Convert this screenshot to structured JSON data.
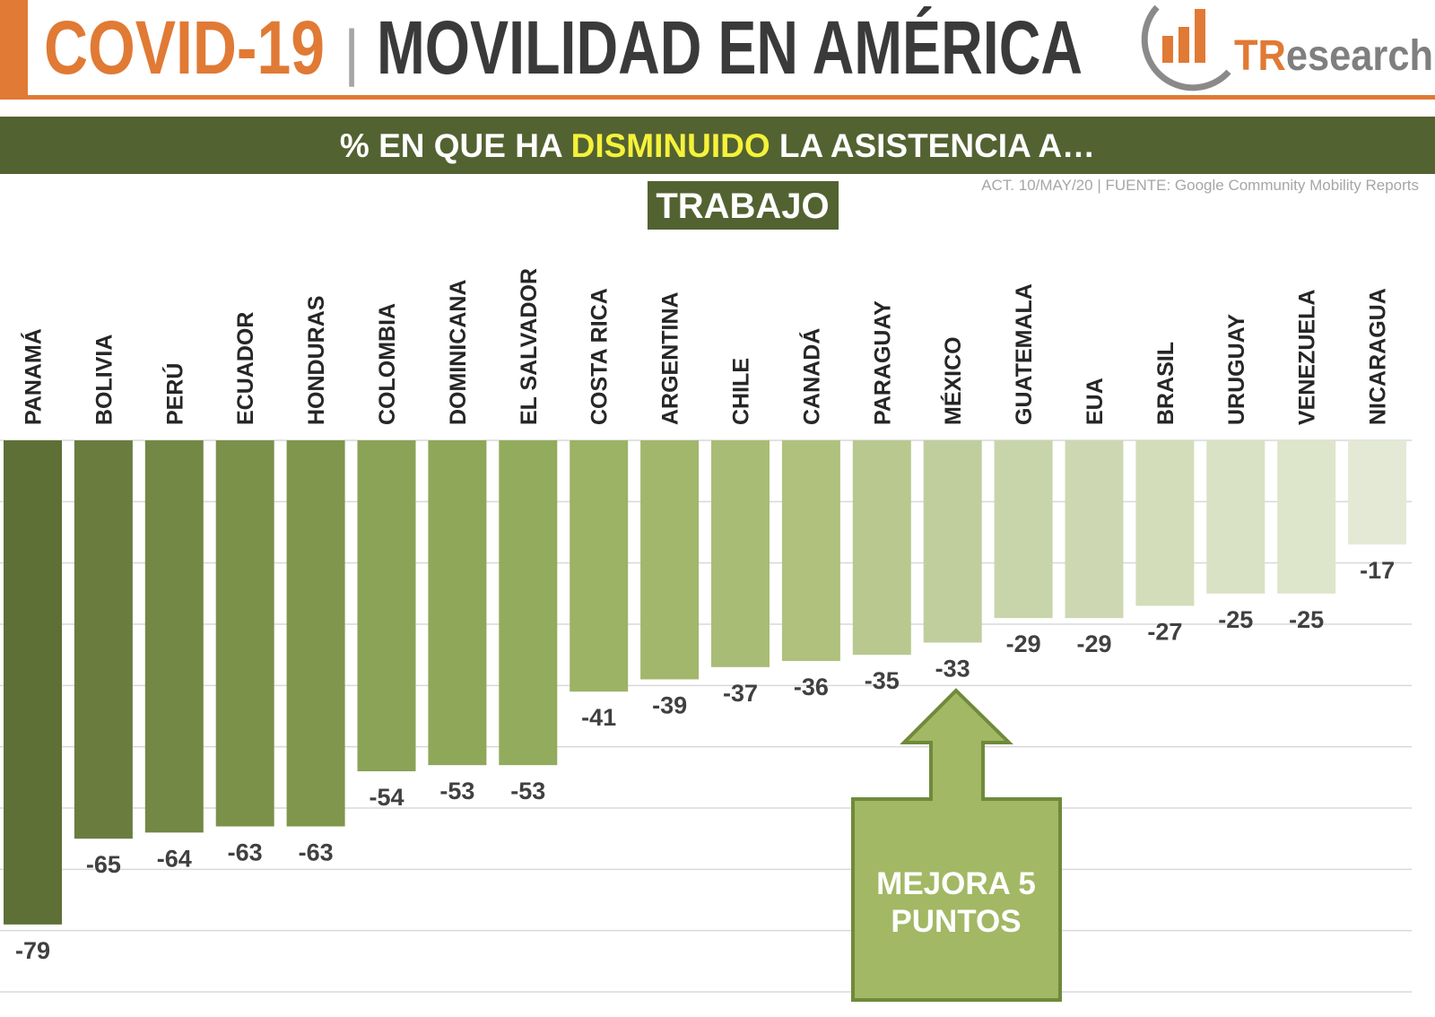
{
  "header": {
    "title_left": "COVID-19",
    "separator": "|",
    "title_right": "MOVILIDAD EN AMÉRICA",
    "logo_a": "TR",
    "logo_b": "esearch"
  },
  "chart_data": {
    "type": "bar",
    "title_parts": [
      "% EN QUE HA ",
      "DISMINUIDO",
      " LA ASISTENCIA A…"
    ],
    "source": "ACT. 10/MAY/20 | FUENTE: Google Community Mobility Reports",
    "subtitle": "TRABAJO",
    "categories": [
      "PANAMÁ",
      "BOLIVIA",
      "PERÚ",
      "ECUADOR",
      "HONDURAS",
      "COLOMBIA",
      "DOMINICANA",
      "EL SALVADOR",
      "COSTA RICA",
      "ARGENTINA",
      "CHILE",
      "CANADÁ",
      "PARAGUAY",
      "MÉXICO",
      "GUATEMALA",
      "EUA",
      "BRASIL",
      "URUGUAY",
      "VENEZUELA",
      "NICARAGUA"
    ],
    "values": [
      -79,
      -65,
      -64,
      -63,
      -63,
      -54,
      -53,
      -53,
      -41,
      -39,
      -37,
      -36,
      -35,
      -33,
      -29,
      -29,
      -27,
      -25,
      -25,
      -17
    ],
    "colors": [
      "#5e7036",
      "#6a7d3f",
      "#738844",
      "#7b914a",
      "#7f964c",
      "#8aa356",
      "#8ea759",
      "#93ab5c",
      "#9cb265",
      "#a2b76c",
      "#a9bc75",
      "#b0c17e",
      "#b8c88f",
      "#c0ce9d",
      "#c8d5aa",
      "#cdd8b2",
      "#d3ddba",
      "#d9e2c4",
      "#dde5cb",
      "#e3e9d4"
    ],
    "ylim": [
      -90,
      0
    ],
    "yticks": [
      0,
      -10,
      -20,
      -30,
      -40,
      -50,
      -60,
      -70,
      -80,
      -90
    ],
    "grid": true,
    "annotation": [
      "MEJORA 5",
      "PUNTOS"
    ]
  }
}
